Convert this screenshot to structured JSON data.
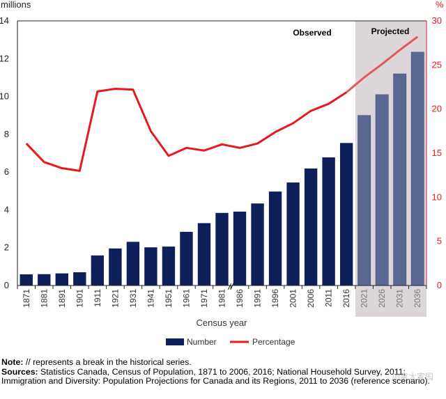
{
  "chart_data": {
    "type": "bar+line",
    "x_label": "Census year",
    "categories": [
      "1871",
      "1881",
      "1891",
      "1901",
      "1911",
      "1921",
      "1931",
      "1941",
      "1951",
      "1961",
      "1971",
      "1981",
      "1986",
      "1991",
      "1996",
      "2001",
      "2006",
      "2011",
      "2016",
      "2021",
      "2026",
      "2031",
      "2036"
    ],
    "observed_count": 19,
    "series": [
      {
        "name": "Number",
        "type": "bar",
        "axis": "left",
        "color": "#0f1f5a",
        "projected_color": "#5a6790",
        "values": [
          0.59,
          0.6,
          0.64,
          0.7,
          1.59,
          1.96,
          2.31,
          2.02,
          2.06,
          2.84,
          3.3,
          3.84,
          3.91,
          4.34,
          4.97,
          5.45,
          6.19,
          6.78,
          7.54,
          9.0,
          10.1,
          11.2,
          12.35
        ]
      },
      {
        "name": "Percentage",
        "type": "line",
        "axis": "right",
        "color": "#e8191e",
        "projected_color": "#e05a5a",
        "values": [
          16.1,
          14.0,
          13.3,
          13.0,
          22.0,
          22.3,
          22.2,
          17.5,
          14.7,
          15.6,
          15.3,
          16.0,
          15.6,
          16.1,
          17.4,
          18.4,
          19.8,
          20.6,
          21.9,
          23.6,
          25.1,
          26.7,
          28.2
        ]
      }
    ],
    "y_left": {
      "label": "millions",
      "min": 0,
      "max": 14,
      "ticks": [
        "0",
        "2",
        "4",
        "6",
        "8",
        "10",
        "12",
        "14"
      ]
    },
    "y_right": {
      "label": "%",
      "min": 0,
      "max": 30,
      "ticks": [
        "0",
        "5",
        "10",
        "15",
        "20",
        "25",
        "30"
      ]
    },
    "annotations": {
      "observed": "Observed",
      "projected": "Projected",
      "break_mark": "//"
    },
    "projected_shade": "#dcd6da",
    "axis_left_color": "#222222",
    "axis_right_color": "#e8191e"
  },
  "notes": {
    "note_label": "Note:",
    "note_text": " // represents a break in the historical series.",
    "sources_label": "Sources:",
    "sources_text": " Statistics Canada, Census of Population, 1871 to 2006, 2016; National Household Survey, 2011; Immigration and Diversity: Population Projections for Canada and its Regions, 2011 to 2036 (reference scenario)."
  },
  "watermark": "加拿大家园"
}
